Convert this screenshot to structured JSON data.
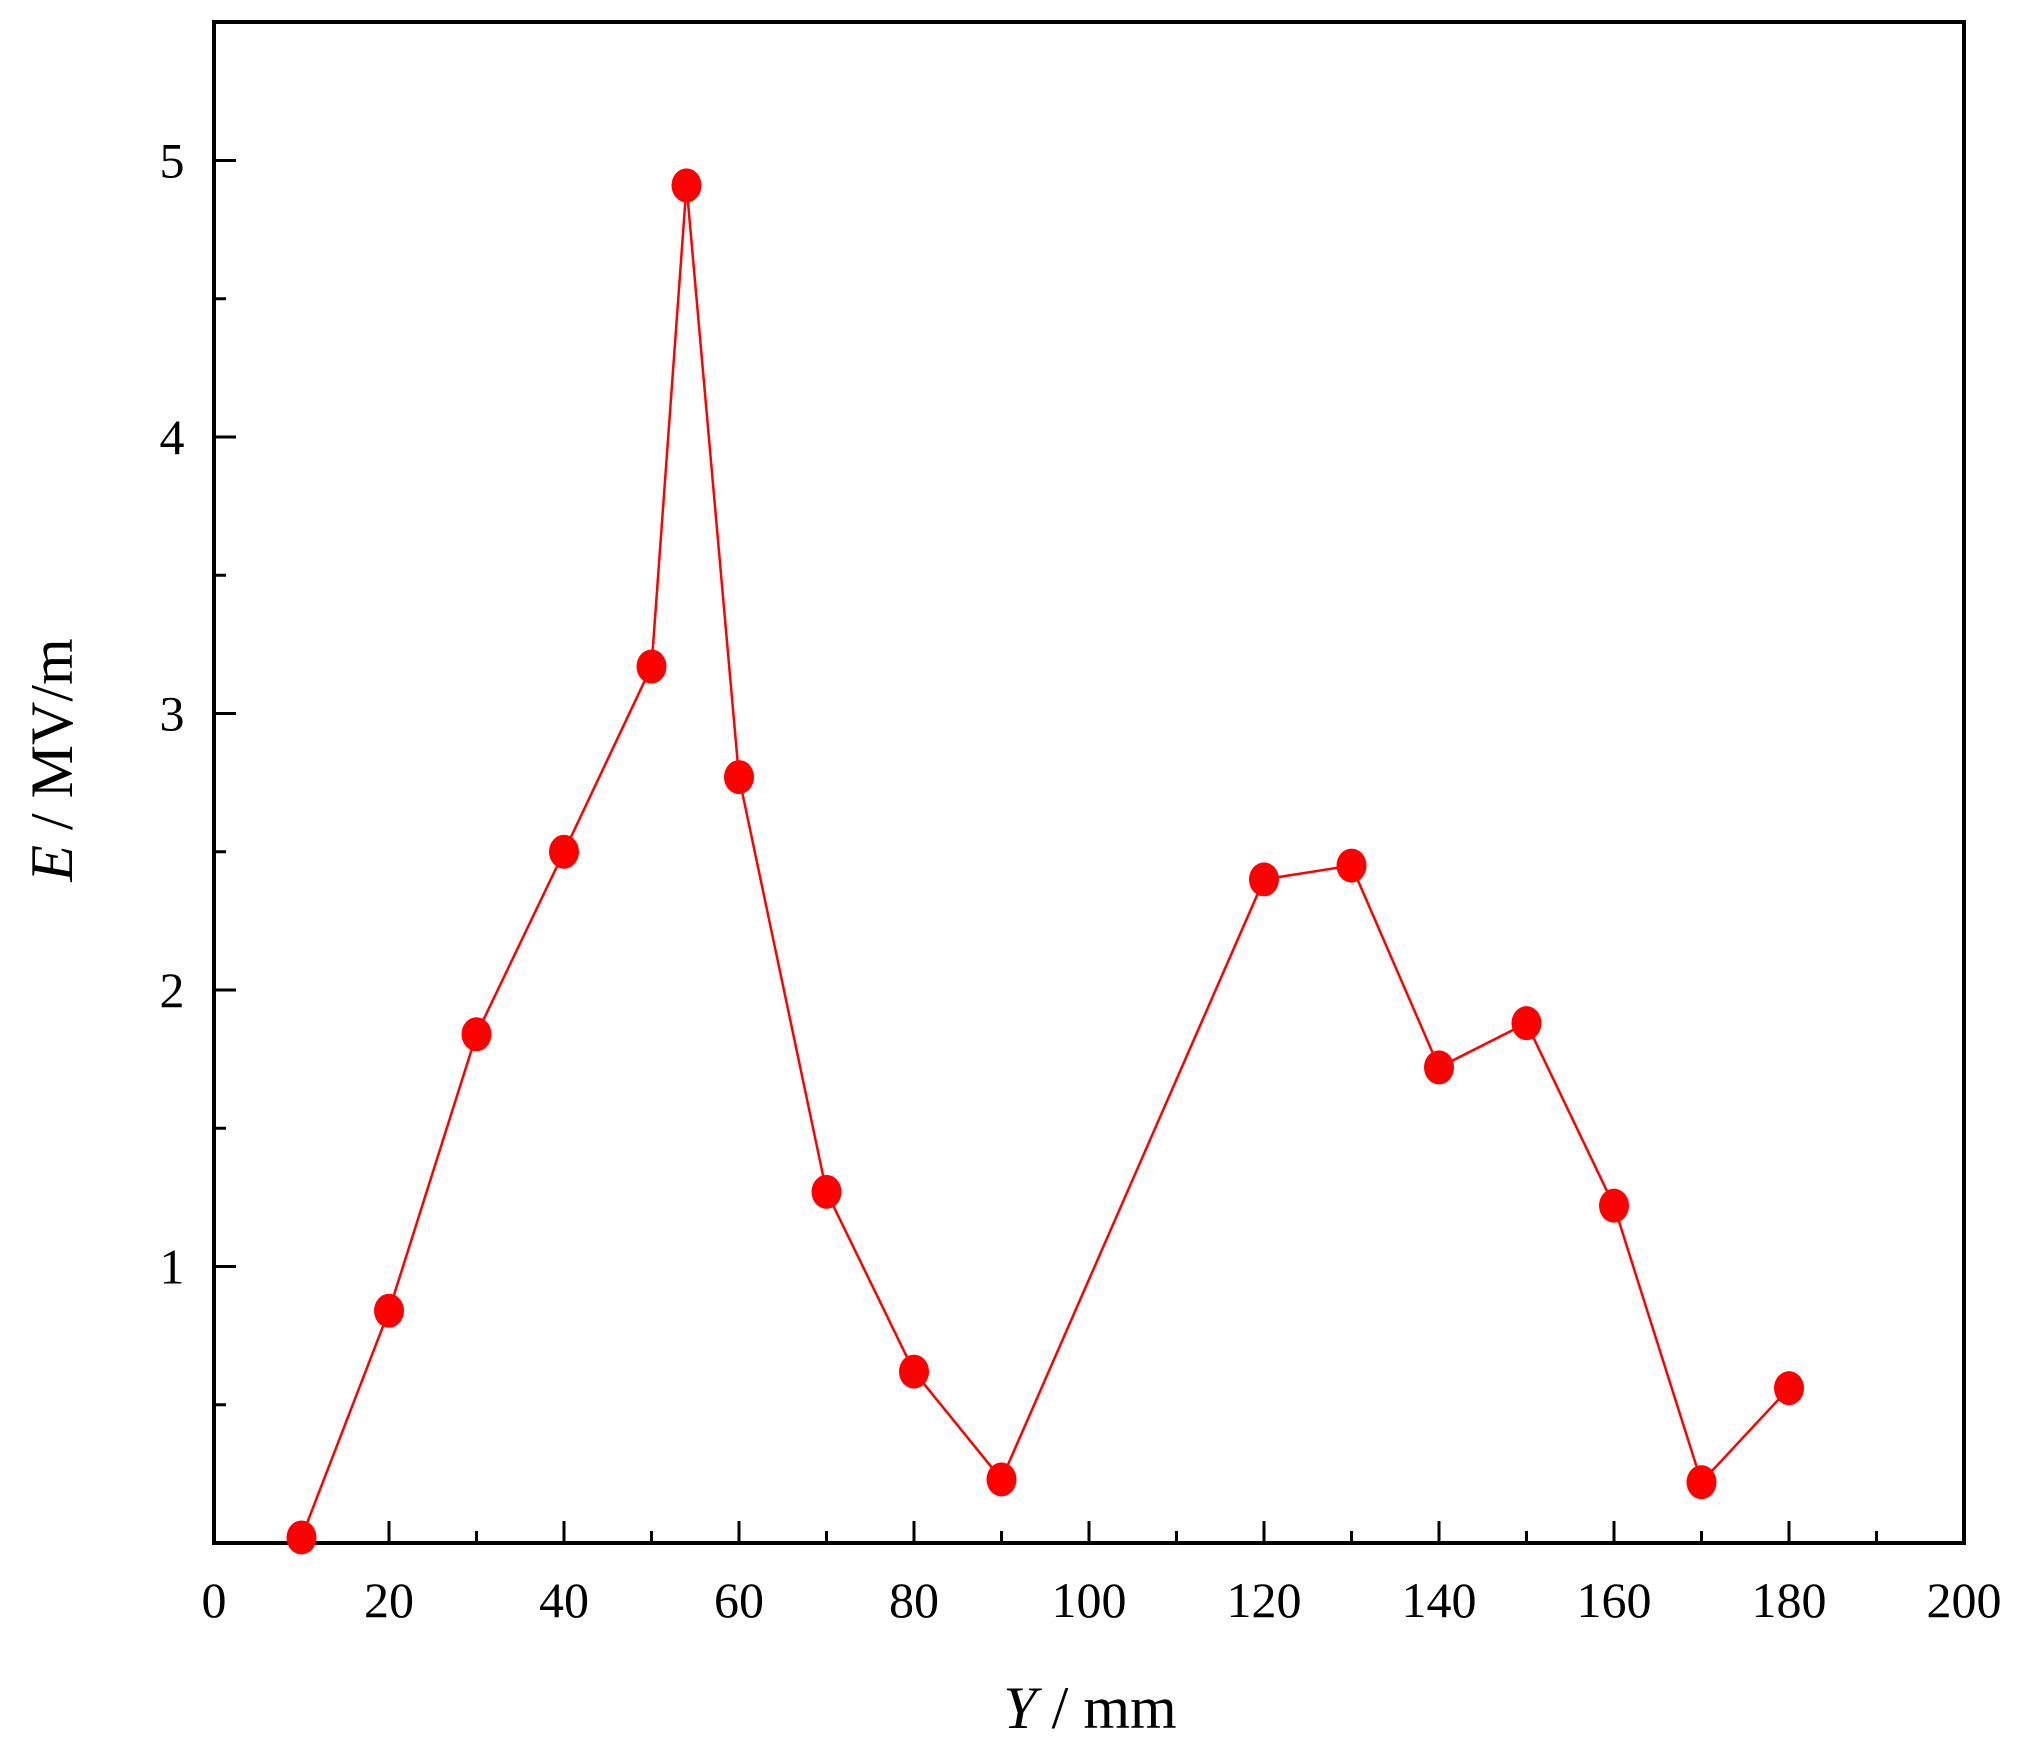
{
  "chart_data": {
    "type": "line",
    "x": [
      10,
      20,
      30,
      40,
      50,
      54,
      60,
      70,
      80,
      90,
      120,
      130,
      140,
      150,
      160,
      170,
      180
    ],
    "y": [
      0.02,
      0.84,
      1.84,
      2.5,
      3.17,
      4.91,
      2.77,
      1.27,
      0.62,
      0.23,
      2.4,
      2.45,
      1.72,
      1.88,
      1.22,
      0.22,
      0.56
    ],
    "xlim": [
      0,
      200
    ],
    "ylim": [
      0,
      5.5
    ],
    "xticks": [
      "0",
      "20",
      "40",
      "60",
      "80",
      "100",
      "120",
      "140",
      "160",
      "180",
      "200"
    ],
    "yticks": [
      "1",
      "2",
      "3",
      "4",
      "5"
    ],
    "xlabel": {
      "var": "Y",
      "unit": " / mm"
    },
    "ylabel": {
      "var": "E",
      "unit": " / MV/m"
    },
    "grid": false,
    "legend": "none",
    "color": "#ff0000"
  }
}
